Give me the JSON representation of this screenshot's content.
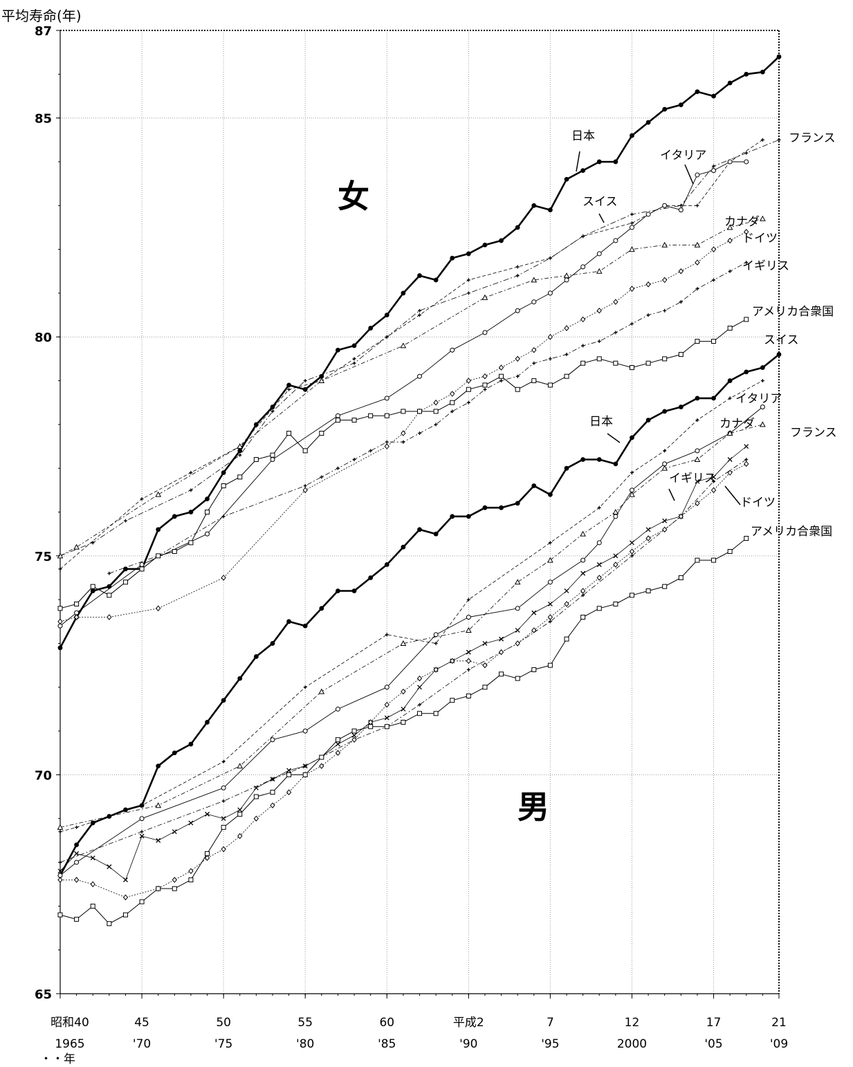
{
  "chart_data": {
    "type": "line",
    "ylabel": "平均寿命(年)",
    "xlabel_unit": "・・年",
    "ylim": [
      65,
      87
    ],
    "yticks": [
      65,
      70,
      75,
      80,
      85,
      87
    ],
    "xlim": [
      1965,
      2009
    ],
    "xticks": [
      {
        "year": 1965,
        "line1": "昭和40",
        "line2": "1965"
      },
      {
        "year": 1970,
        "line1": "45",
        "line2": "'70"
      },
      {
        "year": 1975,
        "line1": "50",
        "line2": "'75"
      },
      {
        "year": 1980,
        "line1": "55",
        "line2": "'80"
      },
      {
        "year": 1985,
        "line1": "60",
        "line2": "'85"
      },
      {
        "year": 1990,
        "line1": "平成2",
        "line2": "'90"
      },
      {
        "year": 1995,
        "line1": "7",
        "line2": "'95"
      },
      {
        "year": 2000,
        "line1": "12",
        "line2": "2000"
      },
      {
        "year": 2005,
        "line1": "17",
        "line2": "'05"
      },
      {
        "year": 2009,
        "line1": "21",
        "line2": "'09"
      }
    ],
    "grid": true,
    "sex_labels": {
      "female": "女",
      "male": "男"
    },
    "series": [
      {
        "name": "日本",
        "sex": "female",
        "style": "japan",
        "x": [
          1965,
          1966,
          1967,
          1968,
          1969,
          1970,
          1971,
          1972,
          1973,
          1974,
          1975,
          1976,
          1977,
          1978,
          1979,
          1980,
          1981,
          1982,
          1983,
          1984,
          1985,
          1986,
          1987,
          1988,
          1989,
          1990,
          1991,
          1992,
          1993,
          1994,
          1995,
          1996,
          1997,
          1998,
          1999,
          2000,
          2001,
          2002,
          2003,
          2004,
          2005,
          2006,
          2007,
          2008,
          2009
        ],
        "y": [
          72.9,
          73.6,
          74.2,
          74.3,
          74.7,
          74.7,
          75.6,
          75.9,
          76.0,
          76.3,
          76.9,
          77.4,
          78.0,
          78.4,
          78.9,
          78.8,
          79.1,
          79.7,
          79.8,
          80.2,
          80.5,
          81.0,
          81.4,
          81.3,
          81.8,
          81.9,
          82.1,
          82.2,
          82.5,
          83.0,
          82.9,
          83.6,
          83.8,
          84.0,
          84.0,
          84.6,
          84.9,
          85.2,
          85.3,
          85.6,
          85.5,
          85.8,
          86.0,
          86.05,
          86.4
        ]
      },
      {
        "name": "フランス",
        "sex": "female",
        "style": "dashdot",
        "x": [
          1965,
          1967,
          1969,
          1973,
          1976,
          1978,
          1980,
          1983,
          1985,
          1987,
          1990,
          1993,
          1995,
          1997,
          2000,
          2003,
          2005,
          2007,
          2009
        ],
        "y": [
          75.0,
          75.3,
          75.8,
          76.5,
          77.3,
          78.3,
          79.0,
          79.4,
          80.0,
          80.6,
          81.0,
          81.4,
          81.8,
          82.3,
          82.8,
          83.0,
          83.9,
          84.2,
          84.5
        ]
      },
      {
        "name": "スイス",
        "sex": "female",
        "style": "dashed",
        "x": [
          1965,
          1970,
          1973,
          1976,
          1979,
          1981,
          1983,
          1985,
          1987,
          1990,
          1993,
          1995,
          1997,
          2000,
          2002,
          2004,
          2006,
          2008
        ],
        "y": [
          74.7,
          76.3,
          76.9,
          77.5,
          78.8,
          79.0,
          79.5,
          80.0,
          80.5,
          81.3,
          81.6,
          81.8,
          82.3,
          82.6,
          83.0,
          83.0,
          84.0,
          84.5
        ]
      },
      {
        "name": "イタリア",
        "sex": "female",
        "style": "circle",
        "x": [
          1965,
          1966,
          1970,
          1974,
          1978,
          1982,
          1985,
          1987,
          1989,
          1991,
          1993,
          1994,
          1995,
          1996,
          1997,
          1998,
          1999,
          2000,
          2001,
          2002,
          2003,
          2004,
          2005,
          2006,
          2007
        ],
        "y": [
          73.4,
          73.7,
          74.8,
          75.5,
          77.2,
          78.2,
          78.6,
          79.1,
          79.7,
          80.1,
          80.6,
          80.8,
          81.0,
          81.3,
          81.6,
          81.9,
          82.2,
          82.5,
          82.8,
          83.0,
          82.9,
          83.7,
          83.8,
          84.0,
          84.0
        ]
      },
      {
        "name": "カナダ",
        "sex": "female",
        "style": "triangle",
        "x": [
          1965,
          1966,
          1971,
          1976,
          1981,
          1986,
          1991,
          1994,
          1996,
          1998,
          2000,
          2002,
          2004,
          2006,
          2008
        ],
        "y": [
          75.0,
          75.2,
          76.4,
          77.5,
          79.0,
          79.8,
          80.9,
          81.3,
          81.4,
          81.5,
          82.0,
          82.1,
          82.1,
          82.5,
          82.7
        ]
      },
      {
        "name": "ドイツ",
        "sex": "female",
        "style": "diamond",
        "x": [
          1965,
          1966,
          1968,
          1971,
          1975,
          1980,
          1985,
          1986,
          1987,
          1988,
          1989,
          1990,
          1991,
          1992,
          1993,
          1994,
          1995,
          1996,
          1997,
          1998,
          1999,
          2000,
          2001,
          2002,
          2003,
          2004,
          2005,
          2006,
          2007
        ],
        "y": [
          73.5,
          73.6,
          73.6,
          73.8,
          74.5,
          76.5,
          77.5,
          77.8,
          78.3,
          78.5,
          78.7,
          79.0,
          79.1,
          79.3,
          79.5,
          79.7,
          80.0,
          80.2,
          80.4,
          80.6,
          80.8,
          81.1,
          81.2,
          81.3,
          81.5,
          81.7,
          82.0,
          82.2,
          82.4
        ]
      },
      {
        "name": "イギリス",
        "sex": "female",
        "style": "plus",
        "x": [
          1968,
          1971,
          1975,
          1980,
          1981,
          1982,
          1983,
          1984,
          1985,
          1986,
          1987,
          1988,
          1989,
          1990,
          1991,
          1992,
          1993,
          1994,
          1995,
          1996,
          1997,
          1998,
          1999,
          2000,
          2001,
          2002,
          2003,
          2004,
          2005,
          2006,
          2007
        ],
        "y": [
          74.6,
          75.0,
          75.9,
          76.6,
          76.8,
          77.0,
          77.2,
          77.4,
          77.6,
          77.6,
          77.8,
          78.0,
          78.3,
          78.5,
          78.8,
          79.0,
          79.1,
          79.4,
          79.5,
          79.6,
          79.8,
          79.9,
          80.1,
          80.3,
          80.5,
          80.6,
          80.8,
          81.1,
          81.3,
          81.5,
          81.7
        ]
      },
      {
        "name": "アメリカ合衆国",
        "sex": "female",
        "style": "square",
        "x": [
          1965,
          1966,
          1967,
          1968,
          1969,
          1970,
          1971,
          1972,
          1973,
          1974,
          1975,
          1976,
          1977,
          1978,
          1979,
          1980,
          1981,
          1982,
          1983,
          1984,
          1985,
          1986,
          1987,
          1988,
          1989,
          1990,
          1991,
          1992,
          1993,
          1994,
          1995,
          1996,
          1997,
          1998,
          1999,
          2000,
          2001,
          2002,
          2003,
          2004,
          2005,
          2006,
          2007
        ],
        "y": [
          73.8,
          73.9,
          74.3,
          74.1,
          74.4,
          74.7,
          75.0,
          75.1,
          75.3,
          76.0,
          76.6,
          76.8,
          77.2,
          77.3,
          77.8,
          77.4,
          77.8,
          78.1,
          78.1,
          78.2,
          78.2,
          78.3,
          78.3,
          78.3,
          78.5,
          78.8,
          78.9,
          79.1,
          78.8,
          79.0,
          78.9,
          79.1,
          79.4,
          79.5,
          79.4,
          79.3,
          79.4,
          79.5,
          79.6,
          79.9,
          79.9,
          80.2,
          80.4
        ]
      },
      {
        "name": "日本",
        "sex": "male",
        "style": "japan",
        "x": [
          1965,
          1966,
          1967,
          1968,
          1969,
          1970,
          1971,
          1972,
          1973,
          1974,
          1975,
          1976,
          1977,
          1978,
          1979,
          1980,
          1981,
          1982,
          1983,
          1984,
          1985,
          1986,
          1987,
          1988,
          1989,
          1990,
          1991,
          1992,
          1993,
          1994,
          1995,
          1996,
          1997,
          1998,
          1999,
          2000,
          2001,
          2002,
          2003,
          2004,
          2005,
          2006,
          2007,
          2008,
          2009
        ],
        "y": [
          67.7,
          68.4,
          68.9,
          69.05,
          69.2,
          69.3,
          70.2,
          70.5,
          70.7,
          71.2,
          71.7,
          72.2,
          72.7,
          73.0,
          73.5,
          73.4,
          73.8,
          74.2,
          74.2,
          74.5,
          74.8,
          75.2,
          75.6,
          75.5,
          75.9,
          75.9,
          76.1,
          76.1,
          76.2,
          76.6,
          76.4,
          77.0,
          77.2,
          77.2,
          77.1,
          77.7,
          78.1,
          78.3,
          78.4,
          78.6,
          78.6,
          79.0,
          79.2,
          79.3,
          79.6
        ]
      },
      {
        "name": "スイス",
        "sex": "male",
        "style": "dashed",
        "x": [
          1965,
          1966,
          1970,
          1975,
          1980,
          1985,
          1988,
          1990,
          1995,
          1998,
          2000,
          2002,
          2004,
          2006,
          2008
        ],
        "y": [
          68.7,
          68.8,
          69.3,
          70.3,
          72.0,
          73.2,
          73.0,
          74.0,
          75.3,
          76.1,
          76.9,
          77.4,
          78.1,
          78.6,
          79.0
        ]
      },
      {
        "name": "イタリア",
        "sex": "male",
        "style": "circle",
        "x": [
          1965,
          1966,
          1970,
          1975,
          1978,
          1980,
          1982,
          1985,
          1988,
          1990,
          1993,
          1995,
          1997,
          1998,
          1999,
          2000,
          2002,
          2004,
          2006,
          2008
        ],
        "y": [
          67.7,
          68.0,
          69.0,
          69.7,
          70.8,
          71.0,
          71.5,
          72.0,
          73.2,
          73.6,
          73.8,
          74.4,
          74.9,
          75.3,
          75.9,
          76.5,
          77.1,
          77.4,
          77.8,
          78.4
        ]
      },
      {
        "name": "フランス",
        "sex": "male",
        "style": "cross",
        "x": [
          1965,
          1966,
          1967,
          1968,
          1969,
          1970,
          1971,
          1972,
          1973,
          1974,
          1975,
          1976,
          1977,
          1978,
          1979,
          1980,
          1981,
          1982,
          1983,
          1984,
          1985,
          1986,
          1987,
          1988,
          1989,
          1990,
          1991,
          1992,
          1993,
          1994,
          1995,
          1996,
          1997,
          1998,
          1999,
          2000,
          2001,
          2002,
          2003,
          2004,
          2005,
          2006,
          2007
        ],
        "y": [
          67.8,
          68.2,
          68.1,
          67.9,
          67.6,
          68.6,
          68.5,
          68.7,
          68.9,
          69.1,
          69.0,
          69.2,
          69.7,
          69.9,
          70.1,
          70.2,
          70.4,
          70.7,
          70.9,
          71.2,
          71.3,
          71.5,
          72.0,
          72.4,
          72.6,
          72.8,
          73.0,
          73.1,
          73.3,
          73.7,
          73.9,
          74.2,
          74.6,
          74.8,
          75.0,
          75.3,
          75.6,
          75.8,
          75.9,
          76.7,
          76.8,
          77.2,
          77.5
        ]
      },
      {
        "name": "カナダ",
        "sex": "male",
        "style": "triangle",
        "x": [
          1965,
          1971,
          1976,
          1981,
          1986,
          1990,
          1993,
          1995,
          1997,
          1999,
          2000,
          2002,
          2004,
          2006,
          2008
        ],
        "y": [
          68.8,
          69.3,
          70.2,
          71.9,
          73.0,
          73.3,
          74.4,
          74.9,
          75.5,
          76.0,
          76.4,
          77.0,
          77.2,
          77.8,
          78.0
        ]
      },
      {
        "name": "イギリス",
        "sex": "male",
        "style": "plus",
        "x": [
          1965,
          1970,
          1975,
          1978,
          1980,
          1983,
          1985,
          1987,
          1990,
          1993,
          1995,
          1997,
          2000,
          2003,
          2005,
          2007
        ],
        "y": [
          68.0,
          68.7,
          69.4,
          69.9,
          70.2,
          70.8,
          71.1,
          71.6,
          72.4,
          73.0,
          73.5,
          74.1,
          75.0,
          75.9,
          76.7,
          77.2
        ]
      },
      {
        "name": "ドイツ",
        "sex": "male",
        "style": "diamond",
        "x": [
          1965,
          1966,
          1967,
          1969,
          1971,
          1972,
          1973,
          1974,
          1975,
          1976,
          1977,
          1978,
          1979,
          1980,
          1981,
          1982,
          1983,
          1984,
          1985,
          1986,
          1987,
          1988,
          1989,
          1990,
          1991,
          1992,
          1993,
          1994,
          1995,
          1996,
          1997,
          1998,
          1999,
          2000,
          2001,
          2002,
          2003,
          2004,
          2005,
          2006,
          2007
        ],
        "y": [
          67.6,
          67.6,
          67.5,
          67.2,
          67.4,
          67.6,
          67.8,
          68.1,
          68.3,
          68.6,
          69.0,
          69.3,
          69.6,
          70.0,
          70.2,
          70.5,
          70.8,
          71.2,
          71.6,
          71.9,
          72.2,
          72.4,
          72.6,
          72.6,
          72.5,
          72.8,
          73.0,
          73.3,
          73.6,
          73.9,
          74.2,
          74.5,
          74.8,
          75.1,
          75.4,
          75.6,
          75.9,
          76.2,
          76.5,
          76.9,
          77.1
        ]
      },
      {
        "name": "アメリカ合衆国",
        "sex": "male",
        "style": "square",
        "x": [
          1965,
          1966,
          1967,
          1968,
          1969,
          1970,
          1971,
          1972,
          1973,
          1974,
          1975,
          1976,
          1977,
          1978,
          1979,
          1980,
          1981,
          1982,
          1983,
          1984,
          1985,
          1986,
          1987,
          1988,
          1989,
          1990,
          1991,
          1992,
          1993,
          1994,
          1995,
          1996,
          1997,
          1998,
          1999,
          2000,
          2001,
          2002,
          2003,
          2004,
          2005,
          2006,
          2007
        ],
        "y": [
          66.8,
          66.7,
          67.0,
          66.6,
          66.8,
          67.1,
          67.4,
          67.4,
          67.6,
          68.2,
          68.8,
          69.1,
          69.5,
          69.6,
          70.0,
          70.0,
          70.4,
          70.8,
          71.0,
          71.1,
          71.1,
          71.2,
          71.4,
          71.4,
          71.7,
          71.8,
          72.0,
          72.3,
          72.2,
          72.4,
          72.5,
          73.1,
          73.6,
          73.8,
          73.9,
          74.1,
          74.2,
          74.3,
          74.5,
          74.9,
          74.9,
          75.1,
          75.4
        ]
      }
    ]
  }
}
